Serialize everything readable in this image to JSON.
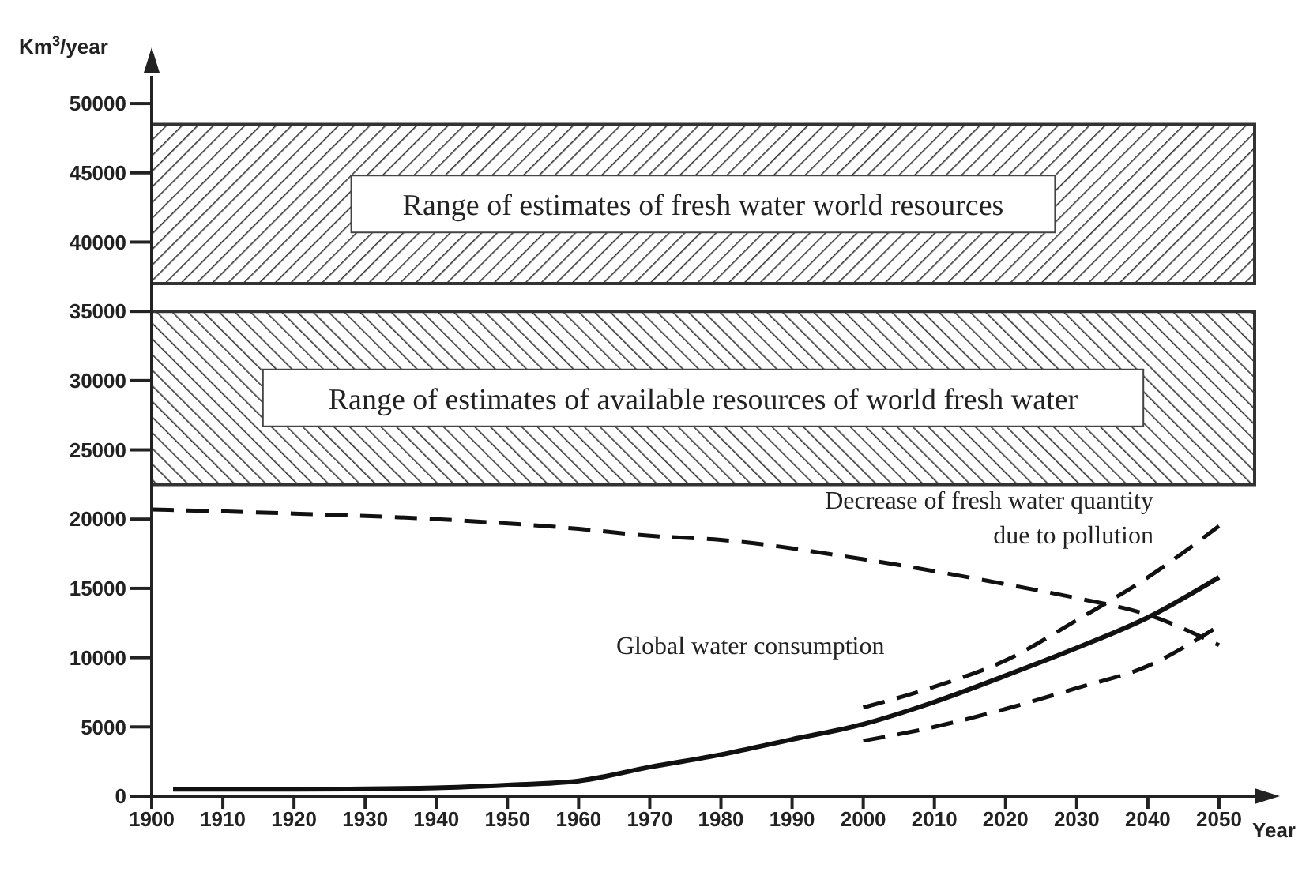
{
  "chart_data": {
    "type": "line",
    "xlabel": "Year",
    "ylabel": "Km$^{3}$/year",
    "xlim": [
      1900,
      2055
    ],
    "xticks": [
      1900,
      1910,
      1920,
      1930,
      1940,
      1950,
      1960,
      1970,
      1980,
      1990,
      2000,
      2010,
      2020,
      2030,
      2040,
      2050
    ],
    "ylim": [
      0,
      52000
    ],
    "yticks": [
      0,
      5000,
      10000,
      15000,
      20000,
      25000,
      30000,
      35000,
      40000,
      45000,
      50000
    ],
    "grid": false,
    "legend": false,
    "marker": "none",
    "series": [
      {
        "color": "#111111",
        "line_style": "solid",
        "x": [
          1903,
          1920,
          1940,
          1950,
          1960,
          1970,
          1980,
          1990,
          2000,
          2010,
          2020,
          2030,
          2040,
          2050
        ],
        "values": [
          500,
          500,
          600,
          800,
          1100,
          2100,
          3000,
          4100,
          5200,
          6800,
          8700,
          10700,
          12900,
          15800
        ]
      },
      {
        "color": "#111111",
        "line_style": "dashed",
        "x": [
          2000,
          2010,
          2020,
          2030,
          2040,
          2050
        ],
        "values": [
          6400,
          7900,
          9800,
          12700,
          15800,
          19500
        ]
      },
      {
        "color": "#111111",
        "line_style": "dashed",
        "x": [
          2000,
          2010,
          2020,
          2030,
          2040,
          2050
        ],
        "values": [
          4000,
          5000,
          6300,
          7800,
          9400,
          12300
        ]
      },
      {
        "color": "#111111",
        "line_style": "dashed",
        "x": [
          1900,
          1920,
          1940,
          1960,
          1970,
          1980,
          2000,
          2020,
          2030,
          2040,
          2050
        ],
        "values": [
          20700,
          20400,
          20000,
          19300,
          18800,
          18500,
          17100,
          15300,
          14300,
          13100,
          10900
        ]
      }
    ],
    "bands": [
      {
        "axis": "y",
        "from": 37000,
        "to": 48500,
        "label": "Range of estimates of fresh water world resources",
        "color": "#333333"
      },
      {
        "axis": "y",
        "from": 22500,
        "to": 35000,
        "label": "Range of estimates of available resources of world fresh water",
        "color": "#333333"
      }
    ],
    "annotations": [
      "Decrease of fresh water quantity\ndue to pollution",
      "Global water consumption"
    ]
  }
}
